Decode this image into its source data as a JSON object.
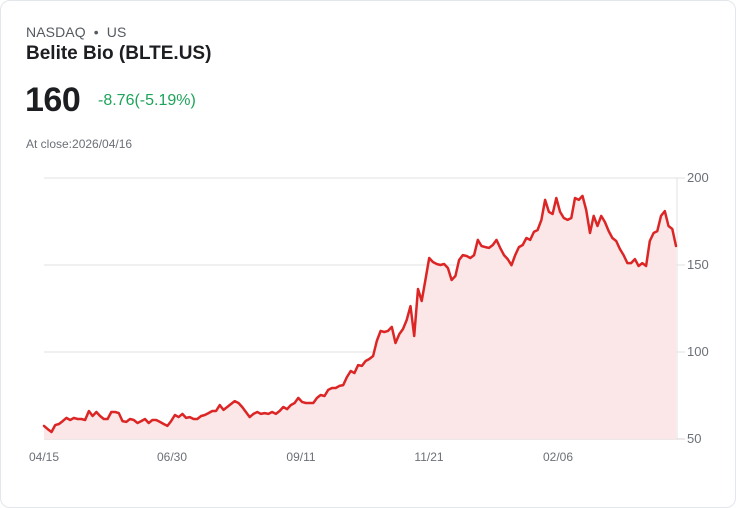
{
  "header": {
    "exchange": "NASDAQ",
    "separator": "•",
    "market": "US",
    "title": "Belite Bio (BLTE.US)",
    "price": "160",
    "change": "-8.76(-5.19%)",
    "close_label": "At close:2026/04/16"
  },
  "colors": {
    "line": "#dc2626",
    "area": "#fbe7e7",
    "change_text": "#1ea35a",
    "grid": "#e2e2e2"
  },
  "chart_data": {
    "type": "area",
    "title": "Belite Bio (BLTE.US)",
    "xlabel": "",
    "ylabel": "",
    "ylim": [
      50,
      200
    ],
    "yticks": [
      200,
      150,
      100,
      50
    ],
    "xticks": [
      "04/15",
      "06/30",
      "09/11",
      "11/21",
      "02/06"
    ],
    "grid": true,
    "y_axis_position": "right",
    "x_range": [
      "04/15",
      "04/16"
    ],
    "series": [
      {
        "name": "BLTE.US",
        "values": [
          57.5,
          55.7,
          54.0,
          58.0,
          58.6,
          60.3,
          62.1,
          60.9,
          62.1,
          61.5,
          61.5,
          60.9,
          66.1,
          63.2,
          65.5,
          63.2,
          61.5,
          61.5,
          65.5,
          65.5,
          64.9,
          60.3,
          59.8,
          61.5,
          60.9,
          59.2,
          60.3,
          61.5,
          59.2,
          60.9,
          60.9,
          59.8,
          58.6,
          57.5,
          60.3,
          63.8,
          62.6,
          64.4,
          62.1,
          62.6,
          61.5,
          61.5,
          63.2,
          63.8,
          64.9,
          66.1,
          66.1,
          69.5,
          66.7,
          68.4,
          70.1,
          71.8,
          70.7,
          68.4,
          65.5,
          62.6,
          64.4,
          65.5,
          64.4,
          64.9,
          64.4,
          65.5,
          64.4,
          66.1,
          68.4,
          67.2,
          69.5,
          70.7,
          73.6,
          71.3,
          70.7,
          70.7,
          70.7,
          73.6,
          75.3,
          74.7,
          78.2,
          79.3,
          79.3,
          80.5,
          81.0,
          85.6,
          89.1,
          87.9,
          92.5,
          92.0,
          94.8,
          96.0,
          97.7,
          106.3,
          112.1,
          111.5,
          112.1,
          114.4,
          105.2,
          110.3,
          113.2,
          118.4,
          126.4,
          109.2,
          136.2,
          129.3,
          141.4,
          154.0,
          151.7,
          150.6,
          150.0,
          150.6,
          148.3,
          141.4,
          143.7,
          152.9,
          155.7,
          155.2,
          154.0,
          155.7,
          164.4,
          160.9,
          160.3,
          159.8,
          161.5,
          164.4,
          159.8,
          155.7,
          153.4,
          149.9,
          155.7,
          160.3,
          161.5,
          165.5,
          164.4,
          169.0,
          170.1,
          175.9,
          187.4,
          180.5,
          179.3,
          188.5,
          180.5,
          177.0,
          175.9,
          177.0,
          188.5,
          187.4,
          189.7,
          181.6,
          168.4,
          178.2,
          172.4,
          178.2,
          174.7,
          169.5,
          165.5,
          163.8,
          159.2,
          155.7,
          151.1,
          151.1,
          153.4,
          149.4,
          151.1,
          149.4,
          163.8,
          168.4,
          169.5,
          178.2,
          181.0,
          172.4,
          170.7,
          160.9
        ]
      }
    ]
  }
}
